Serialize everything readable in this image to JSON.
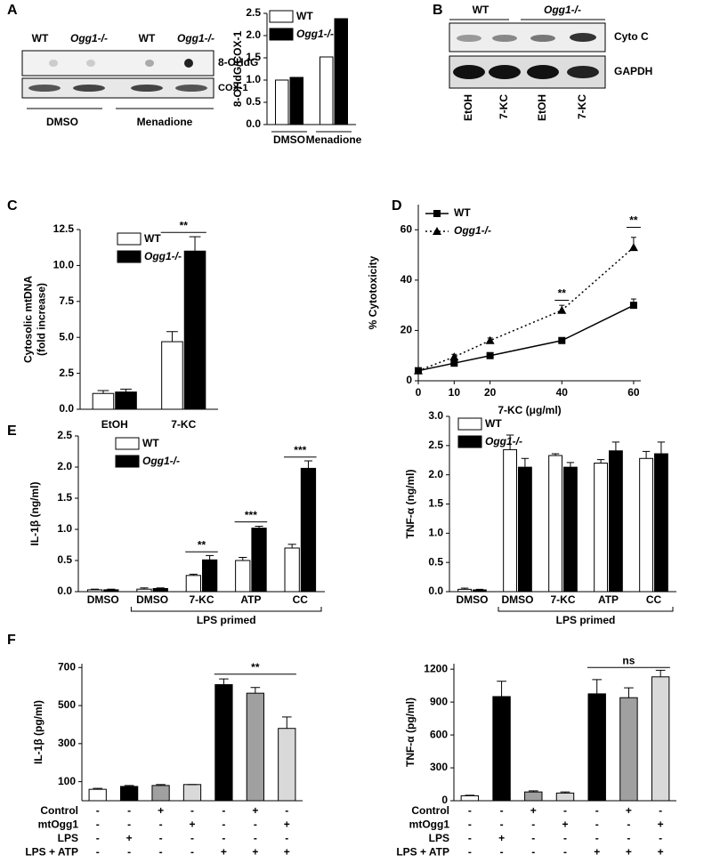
{
  "panel_labels": [
    "A",
    "B",
    "C",
    "D",
    "E",
    "F"
  ],
  "blots": {
    "A": {
      "lanes": [
        "WT",
        "Ogg1-/-",
        "WT",
        "Ogg1-/-"
      ],
      "rows": [
        "8-OHdG",
        "COX-1"
      ],
      "groups": [
        "DMSO",
        "Menadione"
      ]
    },
    "B": {
      "groups": [
        "WT",
        "Ogg1-/-"
      ],
      "rows": [
        "Cyto C",
        "GAPDH"
      ],
      "lanes": [
        "EtOH",
        "7-KC",
        "EtOH",
        "7-KC"
      ]
    }
  },
  "chart_data": [
    {
      "type": "bar",
      "ylabel": [
        "8-OHdG/COX-1"
      ],
      "categories": [
        "DMSO",
        "Menadione"
      ],
      "series": [
        {
          "name": "WT",
          "color": "#ffffff",
          "values": [
            1.0,
            1.52
          ]
        },
        {
          "name": "Ogg1-/-",
          "color": "#000000",
          "values": [
            1.06,
            2.38
          ]
        }
      ],
      "ylim": [
        0,
        2.5
      ],
      "yticks": [
        {
          "value": 0,
          "label": "0.0"
        },
        0.5,
        {
          "value": 1,
          "label": "1.0"
        },
        1.5,
        {
          "value": 2,
          "label": "2.0"
        },
        2.5
      ]
    },
    {
      "type": "bar",
      "ylabel": [
        "Cytosolic mtDNA",
        "(fold increase)"
      ],
      "categories": [
        "EtOH",
        "7-KC"
      ],
      "series": [
        {
          "name": "WT",
          "color": "#ffffff",
          "values": [
            1.1,
            4.7
          ],
          "errors": [
            0.2,
            0.7
          ]
        },
        {
          "name": "Ogg1-/-",
          "color": "#000000",
          "values": [
            1.2,
            11.0
          ],
          "errors": [
            0.2,
            1.0
          ]
        }
      ],
      "ylim": [
        0,
        12.5
      ],
      "yticks": [
        {
          "value": 0,
          "label": "0.0"
        },
        2.5,
        {
          "value": 5,
          "label": "5.0"
        },
        7.5,
        {
          "value": 10,
          "label": "10.0"
        },
        12.5
      ],
      "annotations": [
        "**"
      ]
    },
    {
      "type": "line",
      "ylabel": [
        "% Cytotoxicity"
      ],
      "xlabel": "7-KC (μg/ml)",
      "x": [
        0,
        10,
        20,
        40,
        60
      ],
      "series": [
        {
          "name": "WT",
          "color": "#000000",
          "marker": "square",
          "line_style": "solid",
          "values": [
            4,
            7,
            10,
            16,
            30
          ],
          "errors": [
            1,
            1,
            1,
            1,
            2.5
          ]
        },
        {
          "name": "Ogg1-/-",
          "color": "#000000",
          "marker": "triangle",
          "line_style": "dotted",
          "values": [
            4,
            9.5,
            16,
            28,
            53
          ],
          "errors": [
            1,
            1,
            1,
            2,
            4
          ]
        }
      ],
      "xlim": [
        0,
        62
      ],
      "xticks": [
        0,
        10,
        20,
        40,
        60
      ],
      "ylim": [
        0,
        70
      ],
      "yticks": [
        0,
        20,
        40,
        60
      ],
      "annotations": [
        "**",
        "**"
      ]
    },
    {
      "type": "bar",
      "ylabel": [
        "IL-1β (ng/ml)"
      ],
      "categories": [
        "DMSO",
        "DMSO",
        "7-KC",
        "ATP",
        "CC"
      ],
      "group_label": "LPS primed",
      "series": [
        {
          "name": "WT",
          "color": "#ffffff",
          "values": [
            0.03,
            0.04,
            0.26,
            0.5,
            0.7
          ],
          "errors": [
            0.01,
            0.02,
            0.02,
            0.05,
            0.06
          ]
        },
        {
          "name": "Ogg1-/-",
          "color": "#000000",
          "values": [
            0.03,
            0.05,
            0.51,
            1.02,
            1.98
          ],
          "errors": [
            0.01,
            0.01,
            0.07,
            0.03,
            0.12
          ]
        }
      ],
      "ylim": [
        0,
        2.5
      ],
      "yticks": [
        {
          "value": 0,
          "label": "0.0"
        },
        0.5,
        {
          "value": 1,
          "label": "1.0"
        },
        1.5,
        {
          "value": 2,
          "label": "2.0"
        },
        2.5
      ],
      "annotations": [
        "**",
        "***",
        "***"
      ]
    },
    {
      "type": "bar",
      "ylabel": [
        "TNF-α (ng/ml)"
      ],
      "categories": [
        "DMSO",
        "DMSO",
        "7-KC",
        "ATP",
        "CC"
      ],
      "group_label": "LPS primed",
      "series": [
        {
          "name": "WT",
          "color": "#ffffff",
          "values": [
            0.04,
            2.43,
            2.33,
            2.2,
            2.28
          ],
          "errors": [
            0.02,
            0.25,
            0.03,
            0.06,
            0.12
          ]
        },
        {
          "name": "Ogg1-/-",
          "color": "#000000",
          "values": [
            0.03,
            2.13,
            2.13,
            2.41,
            2.36
          ],
          "errors": [
            0.01,
            0.15,
            0.08,
            0.15,
            0.2
          ]
        }
      ],
      "ylim": [
        0,
        3
      ],
      "yticks": [
        {
          "value": 0,
          "label": "0.0"
        },
        0.5,
        {
          "value": 1,
          "label": "1.0"
        },
        1.5,
        {
          "value": 2,
          "label": "2.0"
        },
        2.5,
        {
          "value": 3,
          "label": "3.0"
        }
      ]
    },
    {
      "type": "bar",
      "ylabel": [
        "IL-1β (pg/ml)"
      ],
      "values": [
        60,
        75,
        80,
        85,
        610,
        565,
        380
      ],
      "errors": [
        5,
        5,
        5,
        0,
        30,
        30,
        60
      ],
      "colors": [
        "#ffffff",
        "#000000",
        "#a0a0a0",
        "#d9d9d9",
        "#000000",
        "#a0a0a0",
        "#d9d9d9"
      ],
      "ylim": [
        0,
        720
      ],
      "yticks": [
        100,
        300,
        500,
        700
      ],
      "conditions": [
        {
          "label": "Control",
          "signs": [
            "-",
            "-",
            "+",
            "-",
            "-",
            "+",
            "-"
          ]
        },
        {
          "label": "mtOgg1",
          "signs": [
            "-",
            "-",
            "-",
            "+",
            "-",
            "-",
            "+"
          ]
        },
        {
          "label": "LPS",
          "signs": [
            "-",
            "+",
            "-",
            "-",
            "-",
            "-",
            "-"
          ]
        },
        {
          "label": "LPS + ATP",
          "signs": [
            "-",
            "-",
            "-",
            "-",
            "+",
            "+",
            "+"
          ]
        }
      ],
      "annotations": [
        "**"
      ]
    },
    {
      "type": "bar",
      "ylabel": [
        "TNF-α (pg/ml)"
      ],
      "values": [
        45,
        950,
        80,
        70,
        975,
        940,
        1130
      ],
      "errors": [
        5,
        140,
        10,
        10,
        130,
        90,
        60
      ],
      "colors": [
        "#ffffff",
        "#000000",
        "#a0a0a0",
        "#d9d9d9",
        "#000000",
        "#a0a0a0",
        "#d9d9d9"
      ],
      "ylim": [
        0,
        1250
      ],
      "yticks": [
        0,
        300,
        600,
        900,
        1200
      ],
      "conditions": [
        {
          "label": "Control",
          "signs": [
            "-",
            "-",
            "+",
            "-",
            "-",
            "+",
            "-"
          ]
        },
        {
          "label": "mtOgg1",
          "signs": [
            "-",
            "-",
            "-",
            "+",
            "-",
            "-",
            "+"
          ]
        },
        {
          "label": "LPS",
          "signs": [
            "-",
            "+",
            "-",
            "-",
            "-",
            "-",
            "-"
          ]
        },
        {
          "label": "LPS + ATP",
          "signs": [
            "-",
            "-",
            "-",
            "-",
            "+",
            "+",
            "+"
          ]
        }
      ],
      "annotations": [
        "ns"
      ]
    }
  ]
}
